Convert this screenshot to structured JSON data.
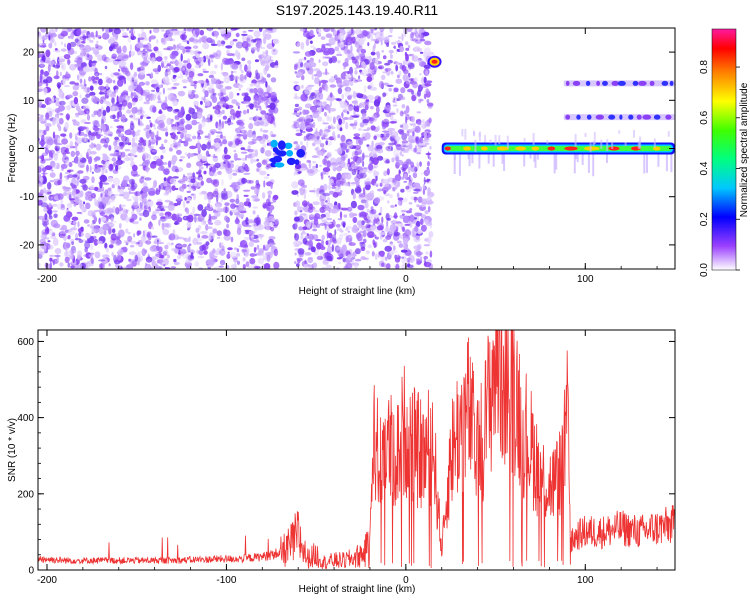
{
  "title": "S197.2025.143.19.40.R11",
  "chart_data": [
    {
      "type": "heatmap",
      "name": "spectrogram",
      "xlabel": "Height of straight line (km)",
      "ylabel": "Frequency (Hz)",
      "xlim": [
        -205,
        150
      ],
      "ylim": [
        -25,
        25
      ],
      "xticks": [
        -200,
        -100,
        0,
        100
      ],
      "yticks": [
        -20,
        -10,
        0,
        10,
        20
      ],
      "colorbar": {
        "label": "Normalized spectral amplitude",
        "range": [
          0,
          0.95
        ],
        "ticks": [
          0.0,
          0.2,
          0.4,
          0.6,
          0.8
        ]
      },
      "features": [
        {
          "kind": "noise-field",
          "x": [
            -205,
            -72
          ],
          "y": [
            -25,
            25
          ],
          "level": 0.2
        },
        {
          "kind": "noise-field",
          "x": [
            -62,
            14
          ],
          "y": [
            -25,
            25
          ],
          "level": 0.2
        },
        {
          "kind": "blob",
          "x": -72,
          "y": -1,
          "level": 0.3
        },
        {
          "kind": "blob",
          "x": 16,
          "y": 18,
          "level": 0.85
        },
        {
          "kind": "band",
          "x": [
            20,
            150
          ],
          "y": 0,
          "level": 0.85
        },
        {
          "kind": "band",
          "x": [
            88,
            150
          ],
          "y": 6.5,
          "level": 0.3
        },
        {
          "kind": "band",
          "x": [
            88,
            150
          ],
          "y": 13.5,
          "level": 0.3
        }
      ]
    },
    {
      "type": "line",
      "name": "snr",
      "xlabel": "Height of straight line (km)",
      "ylabel": "SNR (10 * v/v)",
      "xlim": [
        -205,
        150
      ],
      "ylim": [
        0,
        630
      ],
      "xticks": [
        -200,
        -100,
        0,
        100
      ],
      "yticks": [
        0,
        200,
        400,
        600
      ],
      "color": "#ee3333",
      "series": [
        {
          "x": [
            -205,
            -190,
            -170,
            -150,
            -130,
            -110,
            -90,
            -80,
            -70,
            -65,
            -60,
            -55,
            -50,
            -45,
            -40,
            -35,
            -30,
            -25,
            -20,
            -18,
            -15,
            -12,
            -10,
            -5,
            0,
            5,
            10,
            15,
            20,
            25,
            30,
            35,
            40,
            45,
            50,
            55,
            60,
            65,
            70,
            75,
            80,
            85,
            88,
            90,
            92,
            95,
            100,
            110,
            120,
            130,
            140,
            150
          ],
          "y": [
            30,
            25,
            25,
            25,
            25,
            28,
            30,
            35,
            45,
            60,
            90,
            30,
            40,
            20,
            25,
            25,
            30,
            40,
            60,
            380,
            280,
            350,
            320,
            300,
            380,
            320,
            300,
            340,
            50,
            300,
            380,
            420,
            300,
            400,
            560,
            520,
            500,
            380,
            320,
            250,
            220,
            240,
            300,
            400,
            70,
            90,
            100,
            100,
            110,
            100,
            110,
            120
          ]
        }
      ]
    }
  ]
}
